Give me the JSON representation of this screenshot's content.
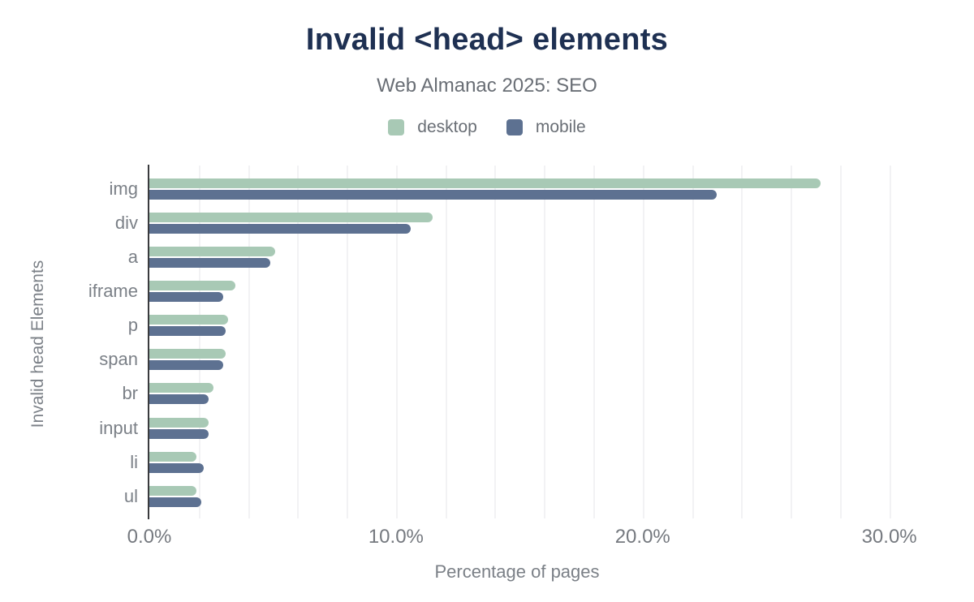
{
  "chart": {
    "title": "Invalid <head> elements",
    "subtitle": "Web Almanac 2025: SEO",
    "xlabel": "Percentage of pages",
    "ylabel": "Invalid head Elements"
  },
  "chart_data": {
    "type": "bar",
    "orientation": "horizontal",
    "title": "Invalid <head> elements",
    "subtitle": "Web Almanac 2025: SEO",
    "xlabel": "Percentage of pages",
    "ylabel": "Invalid head Elements",
    "value_unit": "%",
    "categories": [
      "img",
      "div",
      "a",
      "iframe",
      "p",
      "span",
      "br",
      "input",
      "li",
      "ul"
    ],
    "series": [
      {
        "name": "desktop",
        "color": "#a8c9b5",
        "values": [
          27.2,
          11.5,
          5.1,
          3.5,
          3.2,
          3.1,
          2.6,
          2.4,
          1.9,
          1.9
        ]
      },
      {
        "name": "mobile",
        "color": "#5d7191",
        "values": [
          23.0,
          10.6,
          4.9,
          3.0,
          3.1,
          3.0,
          2.4,
          2.4,
          2.2,
          2.1
        ]
      }
    ],
    "xlim": [
      0,
      31
    ],
    "xticks": [
      {
        "value": 0,
        "label": "0.0%"
      },
      {
        "value": 10,
        "label": "10.0%"
      },
      {
        "value": 20,
        "label": "20.0%"
      },
      {
        "value": 30,
        "label": "30.0%"
      }
    ],
    "gridline_step": 2,
    "gridline_max": 30,
    "grid": "vertical",
    "legend_position": "top",
    "colors": {
      "title": "#1e3052",
      "subtitle_text": "#696e75",
      "axis_line": "#3a3b3e",
      "gridline": "#f2f2f4",
      "tick_text": "#75797f",
      "category_text": "#7b8087"
    }
  }
}
